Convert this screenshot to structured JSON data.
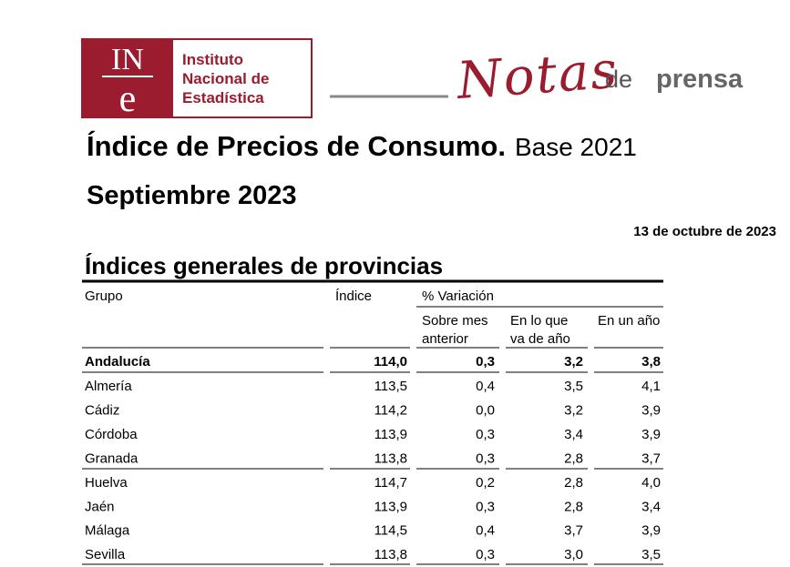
{
  "logo": {
    "mark_top": "IN",
    "mark_bottom": "e",
    "name": [
      "Instituto",
      "Nacional de",
      "Estadística"
    ]
  },
  "masthead": {
    "notas": "Notas",
    "de": "de",
    "prensa": "prensa"
  },
  "title": {
    "main": "Índice de Precios de Consumo.",
    "base": "Base 2021"
  },
  "subtitle": "Septiembre 2023",
  "date": "13 de octubre de 2023",
  "section_title": "Índices generales de provincias",
  "table": {
    "headers": {
      "group": "Grupo",
      "index": "Índice",
      "variation": "% Variación",
      "month": [
        "Sobre mes",
        "anterior"
      ],
      "year_to_date": [
        "En lo que",
        "va de año"
      ],
      "annual": "En un año"
    },
    "rows": [
      [
        "Andalucía",
        "114,0",
        "0,3",
        "3,2",
        "3,8"
      ],
      [
        "Almería",
        "113,5",
        "0,4",
        "3,5",
        "4,1"
      ],
      [
        "Cádiz",
        "114,2",
        "0,0",
        "3,2",
        "3,9"
      ],
      [
        "Córdoba",
        "113,9",
        "0,3",
        "3,4",
        "3,9"
      ],
      [
        "Granada",
        "113,8",
        "0,3",
        "2,8",
        "3,7"
      ],
      [
        "Huelva",
        "114,7",
        "0,2",
        "2,8",
        "4,0"
      ],
      [
        "Jaén",
        "113,9",
        "0,3",
        "2,8",
        "3,4"
      ],
      [
        "Málaga",
        "114,5",
        "0,4",
        "3,7",
        "3,9"
      ],
      [
        "Sevilla",
        "113,8",
        "0,3",
        "3,0",
        "3,5"
      ]
    ]
  }
}
